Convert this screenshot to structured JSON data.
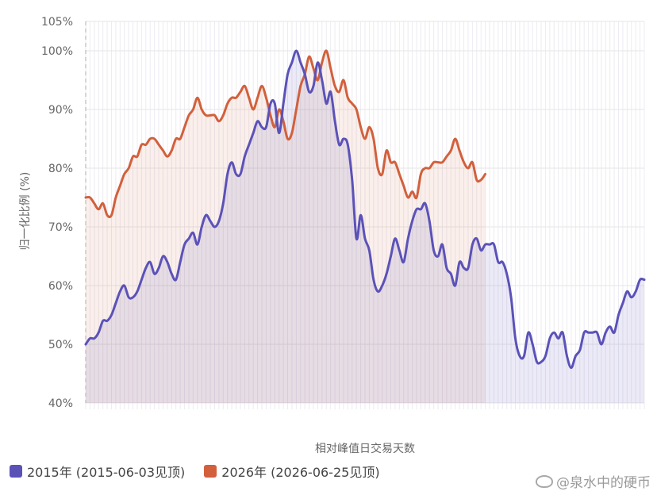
{
  "chart_data": {
    "type": "line",
    "title": "",
    "xlabel": "相对峰值日交易天数",
    "ylabel": "归一化比例 (%)",
    "ylim": [
      40,
      105
    ],
    "yticks": [
      "40%",
      "50%",
      "60%",
      "70%",
      "80%",
      "90%",
      "100%",
      "105%"
    ],
    "ytick_values": [
      40,
      50,
      60,
      70,
      80,
      90,
      100,
      105
    ],
    "grid": true,
    "legend_position": "bottom-left",
    "peak_index": 70,
    "series": [
      {
        "name": "2015年 (2015-06-03见顶)",
        "color": "#5b52b8",
        "values": [
          50,
          51,
          51,
          52,
          54,
          54,
          55,
          57,
          59,
          60,
          58,
          58,
          59,
          61,
          63,
          64,
          62,
          63,
          65,
          64,
          62,
          61,
          64,
          67,
          68,
          69,
          67,
          70,
          72,
          71,
          70,
          71,
          74,
          79,
          81,
          79,
          79,
          82,
          84,
          86,
          88,
          87,
          87,
          91,
          91,
          86,
          91,
          96,
          98,
          100,
          98,
          96,
          93,
          94,
          98,
          95,
          91,
          93,
          88,
          84,
          85,
          84,
          78,
          68,
          72,
          68,
          66,
          61,
          59,
          60,
          62,
          65,
          68,
          66,
          64,
          68,
          71,
          73,
          73,
          74,
          71,
          66,
          65,
          67,
          63,
          62,
          60,
          64,
          63,
          63,
          67,
          68,
          66,
          67,
          67,
          67,
          64,
          64,
          62,
          58,
          51,
          48,
          48,
          52,
          50,
          47,
          47,
          48,
          51,
          52,
          51,
          52,
          48,
          46,
          48,
          49,
          52,
          52,
          52,
          52,
          50,
          52,
          53,
          52,
          55,
          57,
          59,
          58,
          59,
          61,
          61
        ]
      },
      {
        "name": "2026年 (2026-06-25见顶)",
        "color": "#d2603c",
        "values": [
          75,
          75,
          74,
          73,
          74,
          72,
          72,
          75,
          77,
          79,
          80,
          82,
          82,
          84,
          84,
          85,
          85,
          84,
          83,
          82,
          83,
          85,
          85,
          87,
          89,
          90,
          92,
          90,
          89,
          89,
          89,
          88,
          89,
          91,
          92,
          92,
          93,
          94,
          92,
          90,
          92,
          94,
          92,
          89,
          87,
          90,
          88,
          85,
          86,
          90,
          94,
          96,
          99,
          97,
          95,
          98,
          100,
          97,
          94,
          93,
          95,
          92,
          91,
          90,
          87,
          85,
          87,
          85,
          80,
          79,
          83,
          81,
          81,
          79,
          77,
          75,
          76,
          75,
          79,
          80,
          80,
          81,
          81,
          81,
          82,
          83,
          85,
          83,
          81,
          80,
          81,
          78,
          78,
          79
        ]
      }
    ]
  },
  "watermark": "@泉水中的硬币"
}
